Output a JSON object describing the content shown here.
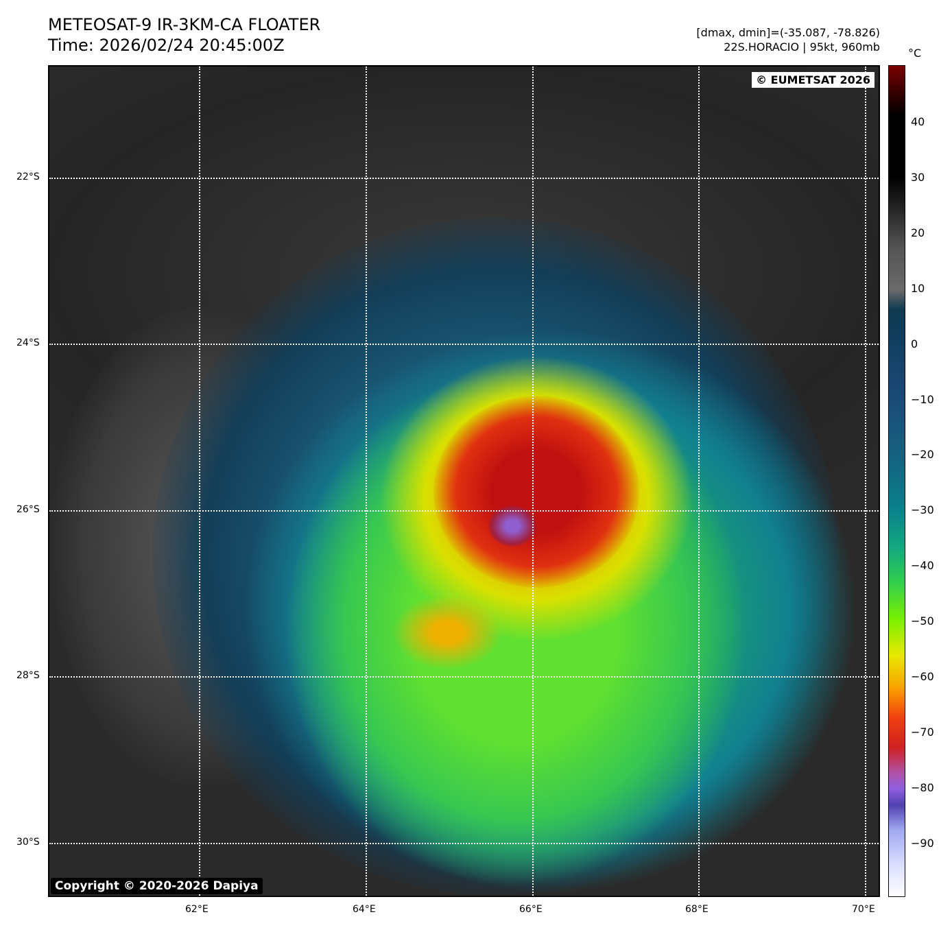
{
  "header": {
    "title": "METEOSAT-9 IR-3KM-CA FLOATER",
    "time": "Time: 2026/02/24 20:45:00Z",
    "range": "[dmax, dmin]=(-35.087, -78.826)",
    "storm": "22S.HORACIO | 95kt, 960mb"
  },
  "map": {
    "credit": "© EUMETSAT 2026",
    "copyright": "Copyright © 2020-2026 Dapiya",
    "lon_labels": [
      "62°E",
      "64°E",
      "66°E",
      "68°E",
      "70°E"
    ],
    "lat_labels": [
      "22°S",
      "24°S",
      "26°S",
      "28°S",
      "30°S"
    ]
  },
  "colorbar": {
    "unit": "°C",
    "ticks": [
      "40",
      "30",
      "20",
      "10",
      "0",
      "−10",
      "−20",
      "−30",
      "−40",
      "−50",
      "−60",
      "−70",
      "−80",
      "−90"
    ],
    "range": [
      -100,
      50
    ]
  }
}
